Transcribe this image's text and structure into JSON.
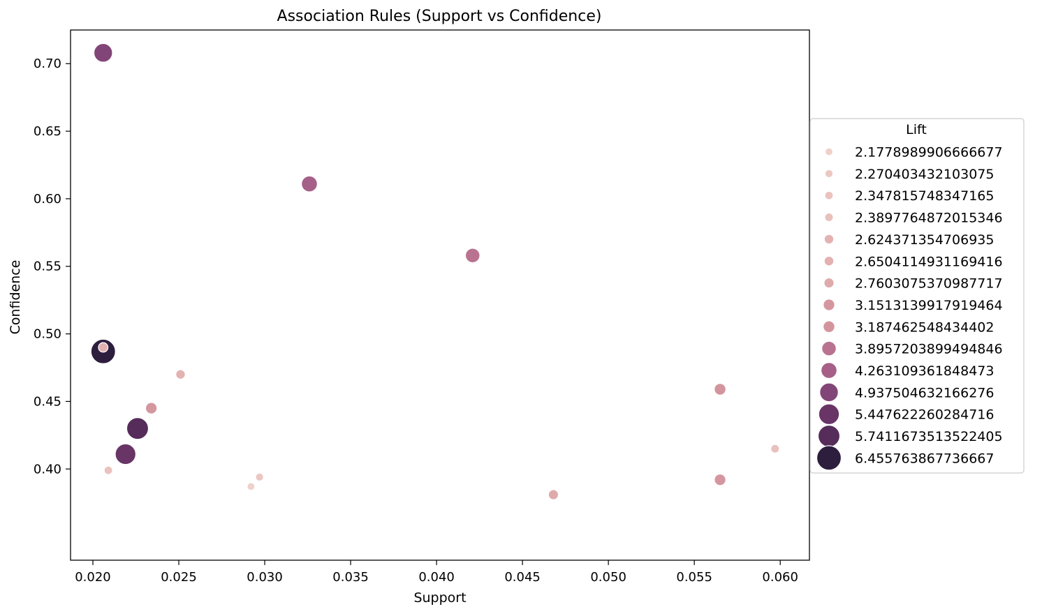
{
  "chart_data": {
    "type": "scatter",
    "title": "Association Rules (Support vs Confidence)",
    "xlabel": "Support",
    "ylabel": "Confidence",
    "xlim": [
      0.0187,
      0.0617
    ],
    "ylim": [
      0.3325,
      0.7249
    ],
    "xticks": [
      0.02,
      0.025,
      0.03,
      0.035,
      0.04,
      0.045,
      0.05,
      0.055,
      0.06
    ],
    "xtick_labels": [
      "0.020",
      "0.025",
      "0.030",
      "0.035",
      "0.040",
      "0.045",
      "0.050",
      "0.055",
      "0.060"
    ],
    "yticks": [
      0.4,
      0.45,
      0.5,
      0.55,
      0.6,
      0.65,
      0.7
    ],
    "ytick_labels": [
      "0.40",
      "0.45",
      "0.50",
      "0.55",
      "0.60",
      "0.65",
      "0.70"
    ],
    "grid": false,
    "legend": {
      "title": "Lift",
      "placement": "right",
      "entries": [
        {
          "label": "2.1778989906666677",
          "color": "#efd0cb",
          "size": 0.0
        },
        {
          "label": "2.270403432103075",
          "color": "#ecc8c3",
          "size": 0.021
        },
        {
          "label": "2.347815748347165",
          "color": "#eac2be",
          "size": 0.04
        },
        {
          "label": "2.3897764872015346",
          "color": "#e9c0bc",
          "size": 0.049
        },
        {
          "label": "2.624371354706935",
          "color": "#e3b2b1",
          "size": 0.105
        },
        {
          "label": "2.6504114931169416",
          "color": "#e2b1b0",
          "size": 0.111
        },
        {
          "label": "2.7603075370987717",
          "color": "#dfaaab",
          "size": 0.137
        },
        {
          "label": "3.1513139917919464",
          "color": "#d5979f",
          "size": 0.228
        },
        {
          "label": "3.187462548434402",
          "color": "#d3959d",
          "size": 0.237
        },
        {
          "label": "3.8957203899494846",
          "color": "#b97390",
          "size": 0.404
        },
        {
          "label": "4.263109361848473",
          "color": "#a65f88",
          "size": 0.49
        },
        {
          "label": "4.937504632166276",
          "color": "#824577",
          "size": 0.649
        },
        {
          "label": "5.447622260284716",
          "color": "#683566",
          "size": 0.769
        },
        {
          "label": "5.7411673513522405",
          "color": "#562c5a",
          "size": 0.838
        },
        {
          "label": "6.455763867736667",
          "color": "#2d1e3e",
          "size": 1.0
        }
      ]
    },
    "points": [
      {
        "x": 0.0206,
        "y": 0.708,
        "lift": 4.937504632166276
      },
      {
        "x": 0.0326,
        "y": 0.611,
        "lift": 4.263109361848473
      },
      {
        "x": 0.0421,
        "y": 0.558,
        "lift": 3.8957203899494846
      },
      {
        "x": 0.0206,
        "y": 0.487,
        "lift": 6.455763867736667
      },
      {
        "x": 0.0206,
        "y": 0.49,
        "lift": 2.6504114931169416
      },
      {
        "x": 0.0251,
        "y": 0.47,
        "lift": 2.624371354706935
      },
      {
        "x": 0.0234,
        "y": 0.445,
        "lift": 3.1513139917919464
      },
      {
        "x": 0.0226,
        "y": 0.43,
        "lift": 5.7411673513522405
      },
      {
        "x": 0.0219,
        "y": 0.411,
        "lift": 5.447622260284716
      },
      {
        "x": 0.0209,
        "y": 0.399,
        "lift": 2.347815748347165
      },
      {
        "x": 0.0292,
        "y": 0.387,
        "lift": 2.1778989906666677
      },
      {
        "x": 0.0297,
        "y": 0.394,
        "lift": 2.270403432103075
      },
      {
        "x": 0.0468,
        "y": 0.381,
        "lift": 2.7603075370987717
      },
      {
        "x": 0.0565,
        "y": 0.459,
        "lift": 3.187462548434402
      },
      {
        "x": 0.0565,
        "y": 0.392,
        "lift": 3.1513139917919464
      },
      {
        "x": 0.0597,
        "y": 0.415,
        "lift": 2.3897764872015346
      }
    ]
  }
}
